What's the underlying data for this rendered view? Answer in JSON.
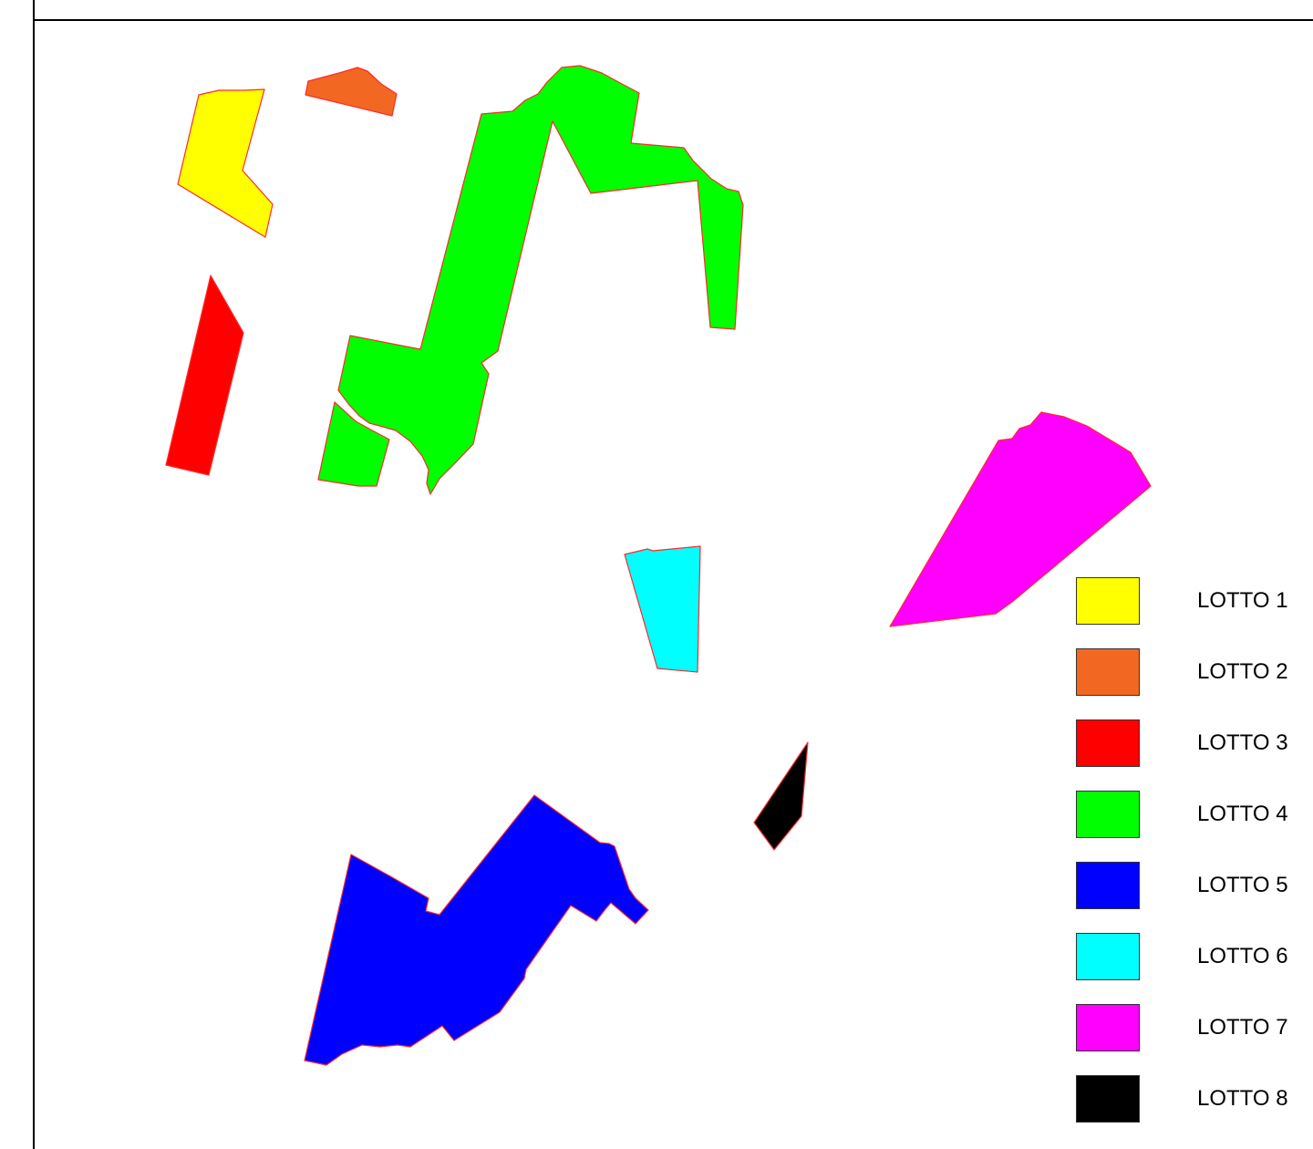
{
  "lots": [
    {
      "label": "LOTTO 1",
      "color": "#ffff00"
    },
    {
      "label": "LOTTO 2",
      "color": "#f26722"
    },
    {
      "label": "LOTTO 3",
      "color": "#ff0000"
    },
    {
      "label": "LOTTO 4",
      "color": "#00ff00"
    },
    {
      "label": "LOTTO 5",
      "color": "#0000ff"
    },
    {
      "label": "LOTTO 6",
      "color": "#00ffff"
    },
    {
      "label": "LOTTO 7",
      "color": "#ff00ff"
    },
    {
      "label": "LOTTO 8",
      "color": "#000000"
    }
  ],
  "colors": {
    "parcel_border": "#ff2a2a",
    "frame": "#000000"
  }
}
